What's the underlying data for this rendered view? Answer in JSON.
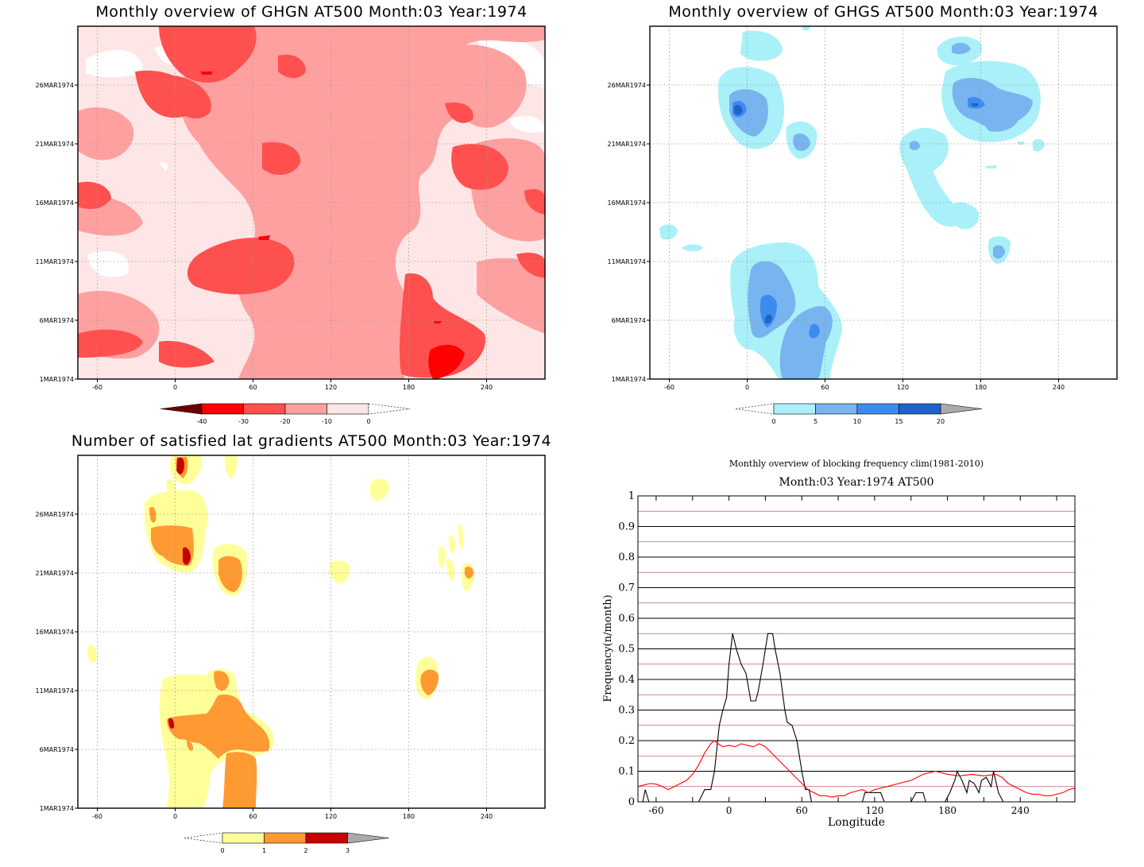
{
  "panels": {
    "ghgn": {
      "title": "Monthly overview of GHGN AT500 Month:03 Year:1974",
      "xticks": [
        "-60",
        "0",
        "60",
        "120",
        "180",
        "240"
      ],
      "yticks": [
        "1MAR1974",
        "6MAR1974",
        "11MAR1974",
        "16MAR1974",
        "21MAR1974",
        "26MAR1974"
      ],
      "colorbar": {
        "labels": [
          "-40",
          "-30",
          "-20",
          "-10",
          "0"
        ],
        "colors": [
          "#6b0000",
          "#ff0000",
          "#ff5050",
          "#ffa0a0",
          "#ffe6e6"
        ]
      }
    },
    "ghgs": {
      "title": "Monthly overview of GHGS AT500 Month:03 Year:1974",
      "xticks": [
        "-60",
        "0",
        "60",
        "120",
        "180",
        "240"
      ],
      "yticks": [
        "1MAR1974",
        "6MAR1974",
        "11MAR1974",
        "16MAR1974",
        "21MAR1974",
        "26MAR1974"
      ],
      "colorbar": {
        "labels": [
          "0",
          "5",
          "10",
          "15",
          "20"
        ],
        "colors": [
          "#aaf0f8",
          "#78b4f0",
          "#3c8cf0",
          "#1e64c8",
          "#aaaaaa"
        ]
      }
    },
    "grad": {
      "title": "Number of satisfied lat gradients AT500 Month:03 Year:1974",
      "xticks": [
        "-60",
        "0",
        "60",
        "120",
        "180",
        "240"
      ],
      "yticks": [
        "1MAR1974",
        "6MAR1974",
        "11MAR1974",
        "16MAR1974",
        "21MAR1974",
        "26MAR1974"
      ],
      "colorbar": {
        "labels": [
          "0",
          "1",
          "2",
          "3"
        ],
        "colors": [
          "#ffff9a",
          "#ff9a32",
          "#c80000",
          "#aaaaaa"
        ]
      }
    },
    "freq": {
      "title": "Monthly overview of blocking frequency clim(1981-2010)",
      "subtitle": "Month:03 Year:1974  AT500",
      "xlabel": "Longitude",
      "ylabel": "Frequency(n/month)",
      "xticks": [
        "-60",
        "0",
        "60",
        "120",
        "180",
        "240"
      ],
      "yticks": [
        "0",
        "0.1",
        "0.2",
        "0.3",
        "0.4",
        "0.5",
        "0.6",
        "0.7",
        "0.8",
        "0.9",
        "1"
      ]
    }
  },
  "chart_data": [
    {
      "type": "heatmap",
      "title": "Monthly overview of GHGN AT500 Month:03 Year:1974",
      "xlim": [
        -75,
        285
      ],
      "ylim_dates": [
        "1MAR1974",
        "31MAR1974"
      ],
      "levels": [
        -40,
        -30,
        -20,
        -10,
        0
      ],
      "colors": {
        "lt_minus40": "#6b0000",
        "minus40_minus30": "#ff0000",
        "minus30_minus20": "#ff5050",
        "minus20_minus10": "#ffa0a0",
        "minus10_0": "#ffe6e6",
        "ge_0": "#ffffff"
      }
    },
    {
      "type": "heatmap",
      "title": "Monthly overview of GHGS AT500 Month:03 Year:1974",
      "xlim": [
        -75,
        285
      ],
      "ylim_dates": [
        "1MAR1974",
        "31MAR1974"
      ],
      "levels": [
        0,
        5,
        10,
        15,
        20
      ],
      "colors": {
        "0_5": "#aaf0f8",
        "5_10": "#78b4f0",
        "10_15": "#3c8cf0",
        "15_20": "#1e64c8",
        "gt_20": "#aaaaaa"
      }
    },
    {
      "type": "heatmap",
      "title": "Number of satisfied lat gradients AT500 Month:03 Year:1974",
      "xlim": [
        -75,
        285
      ],
      "ylim_dates": [
        "1MAR1974",
        "31MAR1974"
      ],
      "levels": [
        0,
        1,
        2,
        3
      ],
      "colors": {
        "0_1": "#ffff9a",
        "1_2": "#ff9a32",
        "2_3": "#c80000",
        "gt_3": "#aaaaaa"
      }
    },
    {
      "type": "line",
      "title": "Monthly overview of blocking frequency clim(1981-2010)",
      "subtitle": "Month:03 Year:1974  AT500",
      "xlabel": "Longitude",
      "ylabel": "Frequency(n/month)",
      "xlim": [
        -75,
        285
      ],
      "ylim": [
        0,
        1
      ],
      "series": [
        {
          "color": "#000000",
          "x": [
            -75,
            -71,
            -69,
            -66,
            -30,
            -25,
            -20,
            -15,
            -12,
            -8,
            -5,
            -2,
            0,
            3,
            6,
            10,
            14,
            18,
            22,
            24,
            28,
            32,
            36,
            38,
            42,
            46,
            48,
            52,
            56,
            60,
            63,
            66,
            68,
            70,
            76,
            80,
            84,
            88,
            110,
            112,
            125,
            128,
            150,
            154,
            160,
            162,
            172,
            178,
            182,
            186,
            188,
            192,
            196,
            198,
            202,
            206,
            208,
            212,
            216,
            218,
            222,
            226,
            285
          ],
          "y": [
            0,
            0,
            0.04,
            0,
            0,
            0,
            0.04,
            0.04,
            0.1,
            0.25,
            0.3,
            0.34,
            0.45,
            0.55,
            0.5,
            0.45,
            0.42,
            0.33,
            0.33,
            0.36,
            0.45,
            0.55,
            0.55,
            0.5,
            0.42,
            0.3,
            0.26,
            0.25,
            0.2,
            0.1,
            0.04,
            0.04,
            0,
            0,
            0,
            0,
            0,
            0,
            0,
            0.03,
            0.03,
            0,
            0,
            0.03,
            0.03,
            0,
            0,
            0,
            0.03,
            0.07,
            0.1,
            0.07,
            0.03,
            0.07,
            0.06,
            0.03,
            0.07,
            0.08,
            0.05,
            0.1,
            0.03,
            0,
            0
          ]
        },
        {
          "color": "#ff0000",
          "x": [
            -75,
            -70,
            -65,
            -60,
            -55,
            -50,
            -45,
            -40,
            -35,
            -30,
            -25,
            -20,
            -15,
            -12,
            -9,
            -5,
            0,
            5,
            10,
            15,
            20,
            25,
            30,
            35,
            40,
            45,
            50,
            55,
            60,
            65,
            70,
            75,
            80,
            85,
            90,
            95,
            100,
            105,
            110,
            115,
            120,
            130,
            140,
            150,
            160,
            170,
            180,
            190,
            200,
            210,
            220,
            225,
            230,
            235,
            240,
            245,
            250,
            255,
            260,
            265,
            270,
            275,
            280,
            285
          ],
          "y": [
            0.05,
            0.055,
            0.06,
            0.058,
            0.05,
            0.04,
            0.05,
            0.06,
            0.07,
            0.09,
            0.12,
            0.16,
            0.19,
            0.2,
            0.19,
            0.18,
            0.185,
            0.18,
            0.19,
            0.185,
            0.18,
            0.19,
            0.18,
            0.16,
            0.14,
            0.12,
            0.1,
            0.08,
            0.06,
            0.04,
            0.03,
            0.02,
            0.02,
            0.015,
            0.02,
            0.02,
            0.03,
            0.035,
            0.04,
            0.03,
            0.04,
            0.05,
            0.06,
            0.07,
            0.09,
            0.1,
            0.09,
            0.085,
            0.09,
            0.085,
            0.09,
            0.08,
            0.06,
            0.05,
            0.04,
            0.03,
            0.025,
            0.025,
            0.02,
            0.02,
            0.025,
            0.03,
            0.04,
            0.045
          ]
        }
      ]
    }
  ]
}
